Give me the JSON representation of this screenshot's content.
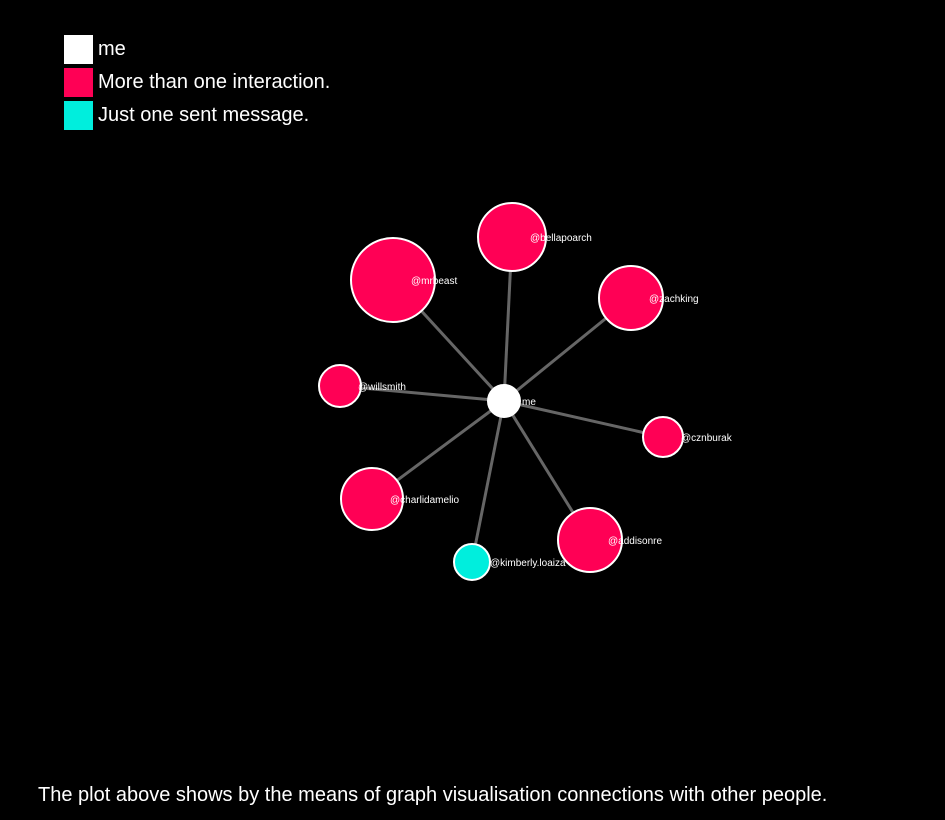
{
  "legend": {
    "items": [
      {
        "label": "me",
        "color": "#ffffff"
      },
      {
        "label": "More than one interaction.",
        "color": "#ff0055"
      },
      {
        "label": "Just one sent message.",
        "color": "#00eedd"
      }
    ]
  },
  "graph": {
    "center": {
      "label": "me",
      "color": "#ffffff"
    },
    "link_color": "#666666",
    "node_stroke": "#ffffff",
    "nodes": [
      {
        "label": "@mrbeast",
        "group": "More than one interaction.",
        "color": "#ff0055"
      },
      {
        "label": "@bellapoarch",
        "group": "More than one interaction.",
        "color": "#ff0055"
      },
      {
        "label": "@zachking",
        "group": "More than one interaction.",
        "color": "#ff0055"
      },
      {
        "label": "@willsmith",
        "group": "More than one interaction.",
        "color": "#ff0055"
      },
      {
        "label": "@cznburak",
        "group": "More than one interaction.",
        "color": "#ff0055"
      },
      {
        "label": "@charlidamelio",
        "group": "More than one interaction.",
        "color": "#ff0055"
      },
      {
        "label": "@addisonre",
        "group": "More than one interaction.",
        "color": "#ff0055"
      },
      {
        "label": "@kimberly.loaiza",
        "group": "Just one sent message.",
        "color": "#00eedd"
      }
    ]
  },
  "caption": "The plot above shows by the means of graph visualisation connections with other people."
}
